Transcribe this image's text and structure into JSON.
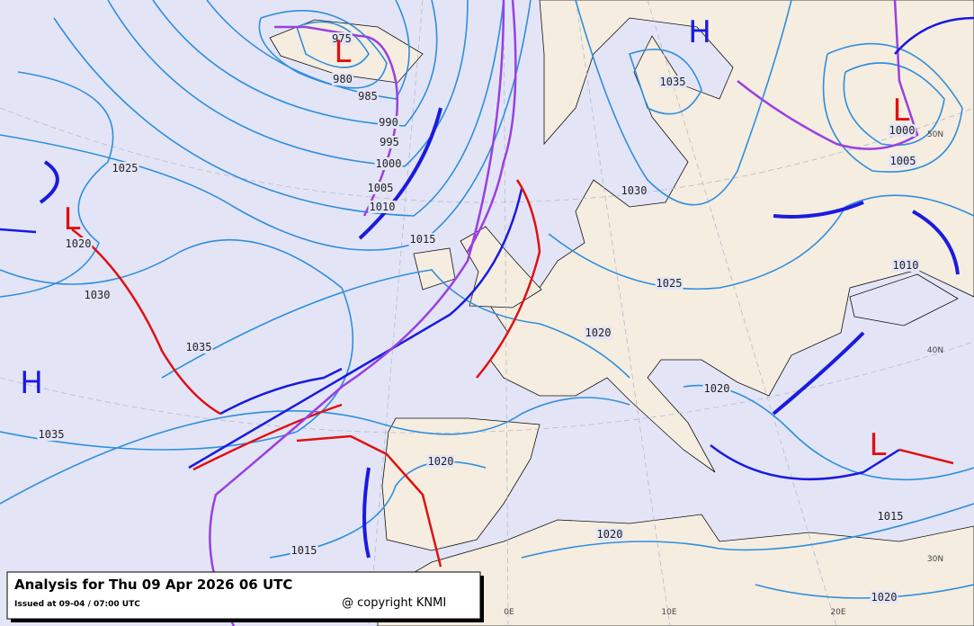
{
  "title": "Analysis for Thu 09 Apr 2026 06 UTC",
  "issued": "Issued at 09-04 / 07:00 UTC",
  "copyright": "@ copyright KNMI",
  "isobar_labels": [
    975,
    980,
    985,
    990,
    995,
    1000,
    1005,
    1010,
    1015,
    1025,
    1020,
    1030,
    1035,
    1035,
    1035,
    1030,
    1025,
    1020,
    1020,
    1020,
    1020,
    1015,
    1015,
    1020,
    1010,
    1000,
    1005
  ],
  "pressure_centers": [
    "H",
    "L",
    "L",
    "H",
    "L",
    "L"
  ],
  "graticule_labels": [
    "50N",
    "40N",
    "30N",
    "0E",
    "10E",
    "20E"
  ]
}
